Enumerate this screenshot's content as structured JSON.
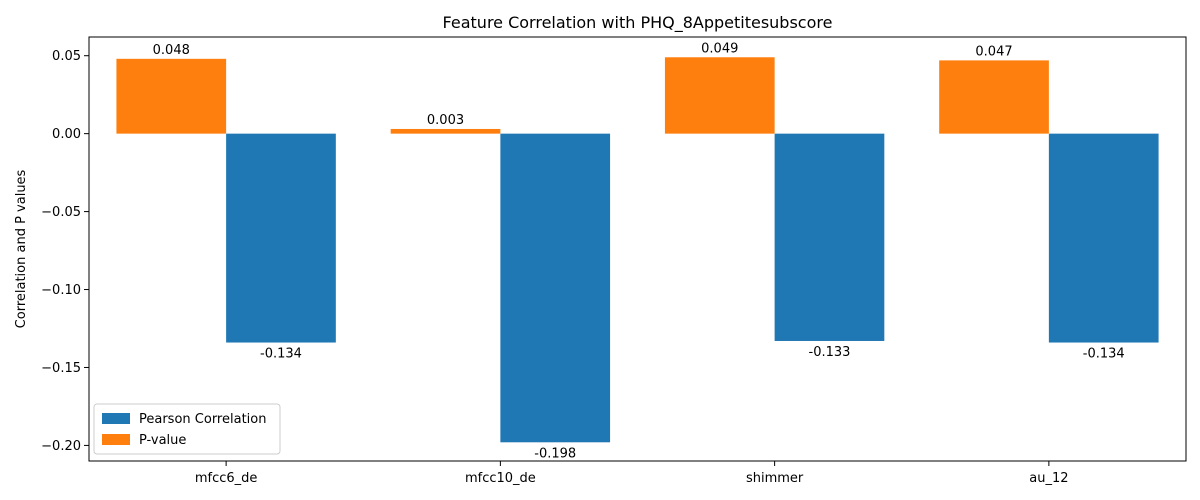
{
  "chart_data": {
    "type": "bar",
    "title": "Feature Correlation with PHQ_8Appetitesubscore",
    "xlabel": "",
    "ylabel": "Correlation and P values",
    "categories": [
      "mfcc6_de",
      "mfcc10_de",
      "shimmer",
      "au_12"
    ],
    "series": [
      {
        "name": "Pearson Correlation",
        "color": "#1f77b4",
        "values": [
          -0.134,
          -0.198,
          -0.133,
          -0.134
        ],
        "labels": [
          "-0.134",
          "-0.198",
          "-0.133",
          "-0.134"
        ]
      },
      {
        "name": "P-value",
        "color": "#ff7f0e",
        "values": [
          0.048,
          0.003,
          0.049,
          0.047
        ],
        "labels": [
          "0.048",
          "0.003",
          "0.049",
          "0.047"
        ]
      }
    ],
    "ylim": [
      -0.21,
      0.062
    ],
    "yticks": [
      0.05,
      0.0,
      -0.05,
      -0.1,
      -0.15,
      -0.2
    ],
    "ytick_labels": [
      "0.05",
      "0.00",
      "−0.05",
      "−0.10",
      "−0.15",
      "−0.20"
    ],
    "grid": false,
    "legend_position": "lower-left"
  }
}
